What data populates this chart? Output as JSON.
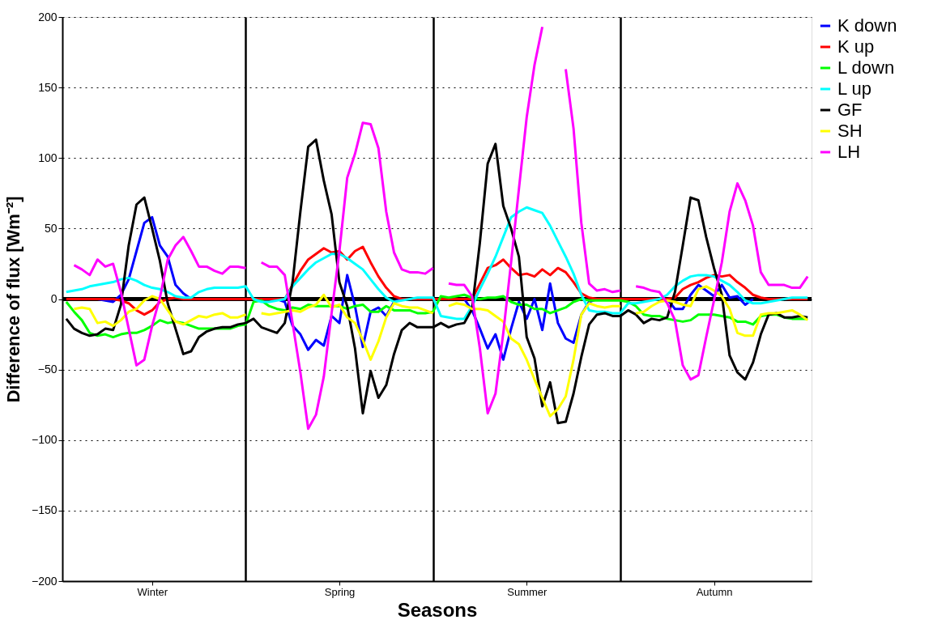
{
  "chart_data": {
    "type": "line",
    "xlabel": "Seasons",
    "ylabel": "Difference of flux [Wm⁻²]",
    "legend": "top right",
    "categories": [
      null,
      null,
      null,
      null,
      null,
      null,
      null,
      null,
      null,
      null,
      null,
      "Winter",
      null,
      null,
      null,
      null,
      null,
      null,
      null,
      null,
      null,
      null,
      null,
      null,
      null,
      null,
      null,
      null,
      null,
      null,
      null,
      null,
      null,
      null,
      null,
      "Spring",
      null,
      null,
      null,
      null,
      null,
      null,
      null,
      null,
      null,
      null,
      null,
      null,
      null,
      null,
      null,
      null,
      null,
      null,
      null,
      null,
      null,
      null,
      null,
      "Summer",
      null,
      null,
      null,
      null,
      null,
      null,
      null,
      null,
      null,
      null,
      null,
      null,
      null,
      null,
      null,
      null,
      null,
      null,
      null,
      null,
      null,
      null,
      null,
      "Autumn",
      null,
      null,
      null,
      null,
      null,
      null,
      null,
      null,
      null,
      null,
      null,
      null
    ],
    "ylim": [
      -200,
      200
    ],
    "yticks": [
      -200,
      -150,
      -100,
      -50,
      0,
      50,
      100,
      150,
      200
    ],
    "grid": true,
    "line_style": "solid",
    "ref_lines": [
      {
        "axis": "y",
        "value": 0,
        "color": "#000000"
      }
    ],
    "series": [
      {
        "name": "K down",
        "color": "#0000ff",
        "values": [
          null,
          null,
          null,
          null,
          0,
          -1,
          -2,
          3,
          14,
          34,
          54,
          58,
          38,
          30,
          10,
          4,
          0,
          null,
          null,
          null,
          null,
          null,
          null,
          null,
          null,
          null,
          null,
          0,
          -2,
          -19,
          -25,
          -36,
          -29,
          -33,
          -12,
          -17,
          17,
          -5,
          -34,
          -9,
          -6,
          -12,
          -2,
          0,
          null,
          null,
          null,
          null,
          null,
          null,
          null,
          0,
          -8,
          -21,
          -35,
          -25,
          -43,
          -21,
          -2,
          -14,
          0,
          -22,
          11,
          -17,
          -28,
          -31,
          -11,
          -2,
          0,
          null,
          null,
          null,
          null,
          null,
          null,
          null,
          null,
          0,
          -7,
          -7,
          3,
          10,
          6,
          2,
          10,
          1,
          2,
          -4,
          0,
          null,
          null,
          null,
          null,
          null,
          null,
          null
        ]
      },
      {
        "name": "K up",
        "color": "#ff0000",
        "values": [
          0,
          0,
          0,
          0,
          0,
          0,
          0,
          -1,
          -3,
          -8,
          -11,
          -8,
          -2,
          0,
          1,
          0,
          0,
          0,
          0,
          0,
          0,
          0,
          0,
          0,
          0,
          0,
          0,
          0,
          0,
          10,
          20,
          28,
          32,
          36,
          33,
          34,
          28,
          34,
          37,
          26,
          16,
          8,
          2,
          0,
          0,
          0,
          0,
          0,
          0,
          0,
          0,
          0,
          0,
          11,
          22,
          24,
          28,
          22,
          17,
          18,
          16,
          21,
          17,
          22,
          19,
          12,
          4,
          1,
          0,
          0,
          0,
          0,
          0,
          0,
          0,
          0,
          0,
          0,
          1,
          7,
          10,
          12,
          15,
          17,
          16,
          17,
          12,
          8,
          3,
          1,
          0,
          0,
          0,
          0,
          0,
          0
        ]
      },
      {
        "name": "L down",
        "color": "#00ff00",
        "values": [
          -2,
          -9,
          -15,
          -24,
          -26,
          -25,
          -27,
          -25,
          -24,
          -24,
          -22,
          -19,
          -15,
          -17,
          -16,
          -17,
          -19,
          -21,
          -21,
          -21,
          -21,
          -21,
          -19,
          -18,
          -2,
          -1,
          -5,
          -7,
          -8,
          -6,
          -7,
          -4,
          -5,
          -5,
          -5,
          -5,
          -7,
          -5,
          -4,
          -9,
          -9,
          -5,
          -8,
          -8,
          -8,
          -10,
          -10,
          -9,
          2,
          1,
          2,
          3,
          1,
          0,
          1,
          1,
          2,
          -2,
          -4,
          -4,
          -7,
          -7,
          -10,
          -8,
          -6,
          -2,
          0,
          -1,
          -1,
          -1,
          -1,
          -1,
          -2,
          -5,
          -11,
          -12,
          -12,
          -14,
          -15,
          -16,
          -15,
          -11,
          -11,
          -11,
          -12,
          -13,
          -16,
          -16,
          -18,
          -12,
          -11,
          -11,
          -13,
          -14,
          -14,
          -14
        ]
      },
      {
        "name": "L up",
        "color": "#00ffff",
        "values": [
          5,
          6,
          7,
          9,
          10,
          11,
          12,
          14,
          15,
          13,
          10,
          8,
          7,
          5,
          2,
          1,
          1,
          5,
          7,
          8,
          8,
          8,
          8,
          9,
          0,
          -2,
          -2,
          -1,
          0,
          9,
          15,
          21,
          26,
          29,
          32,
          32,
          29,
          25,
          21,
          14,
          7,
          1,
          -2,
          -1,
          0,
          1,
          1,
          1,
          -12,
          -13,
          -14,
          -14,
          -5,
          7,
          18,
          30,
          44,
          58,
          62,
          65,
          63,
          61,
          52,
          41,
          30,
          18,
          3,
          -8,
          -9,
          -9,
          -10,
          -10,
          -3,
          -3,
          -2,
          -1,
          0,
          3,
          9,
          13,
          16,
          17,
          17,
          16,
          13,
          10,
          5,
          -1,
          -3,
          -3,
          -2,
          -1,
          0,
          1,
          1,
          1
        ]
      },
      {
        "name": "GF",
        "color": "#000000",
        "values": [
          -14,
          -21,
          -24,
          -26,
          -25,
          -21,
          -22,
          -4,
          38,
          67,
          72,
          50,
          27,
          -3,
          -21,
          -39,
          -37,
          -27,
          -23,
          -21,
          -20,
          -20,
          -18,
          -17,
          -14,
          -20,
          -22,
          -24,
          -17,
          12,
          62,
          108,
          113,
          84,
          60,
          12,
          -5,
          -35,
          -81,
          -51,
          -70,
          -61,
          -39,
          -22,
          -17,
          -20,
          -20,
          -20,
          -17,
          -20,
          -18,
          -17,
          -7,
          40,
          96,
          110,
          66,
          50,
          30,
          -27,
          -42,
          -76,
          -59,
          -88,
          -87,
          -67,
          -41,
          -18,
          -11,
          -10,
          -12,
          -12,
          -8,
          -11,
          -17,
          -14,
          -15,
          -13,
          5,
          38,
          72,
          70,
          44,
          22,
          3,
          -40,
          -52,
          -57,
          -45,
          -25,
          -11,
          -10,
          -13,
          -13,
          -12,
          -13
        ]
      },
      {
        "name": "SH",
        "color": "#ffff00",
        "values": [
          null,
          -7,
          -6,
          -7,
          -17,
          -16,
          -19,
          -15,
          -9,
          -7,
          -1,
          2,
          0,
          -8,
          -16,
          -18,
          -15,
          -12,
          -13,
          -11,
          -10,
          -13,
          -13,
          -11,
          null,
          -10,
          -11,
          -10,
          -9,
          -8,
          -9,
          -6,
          -4,
          3,
          -6,
          -4,
          -13,
          -17,
          -29,
          -43,
          -30,
          -13,
          -3,
          -5,
          -6,
          -6,
          -8,
          -10,
          null,
          -5,
          -3,
          -4,
          -7,
          -7,
          -8,
          -12,
          -16,
          -28,
          -32,
          -43,
          -57,
          -70,
          -83,
          -78,
          -69,
          -43,
          -11,
          -3,
          -5,
          -6,
          -5,
          -5,
          null,
          -10,
          -9,
          -5,
          -2,
          -1,
          -2,
          -4,
          -5,
          7,
          9,
          6,
          2,
          -7,
          -24,
          -26,
          -26,
          -11,
          -10,
          -10,
          -9,
          -8,
          -11,
          -15
        ]
      },
      {
        "name": "LH",
        "color": "#ff00ff",
        "values": [
          null,
          24,
          21,
          17,
          28,
          23,
          25,
          5,
          -21,
          -47,
          -43,
          -19,
          1,
          28,
          38,
          44,
          34,
          23,
          23,
          20,
          18,
          23,
          23,
          22,
          null,
          26,
          23,
          23,
          17,
          -17,
          -52,
          -92,
          -82,
          -55,
          -10,
          34,
          86,
          103,
          125,
          124,
          107,
          62,
          33,
          21,
          19,
          19,
          18,
          22,
          null,
          11,
          10,
          10,
          2,
          -35,
          -81,
          -67,
          -24,
          26,
          78,
          129,
          166,
          193,
          null,
          null,
          163,
          121,
          54,
          11,
          6,
          7,
          5,
          6,
          null,
          9,
          8,
          6,
          5,
          -3,
          -15,
          -47,
          -57,
          -54,
          -27,
          -1,
          26,
          62,
          82,
          70,
          52,
          19,
          10,
          10,
          10,
          8,
          8,
          16
        ]
      }
    ]
  }
}
